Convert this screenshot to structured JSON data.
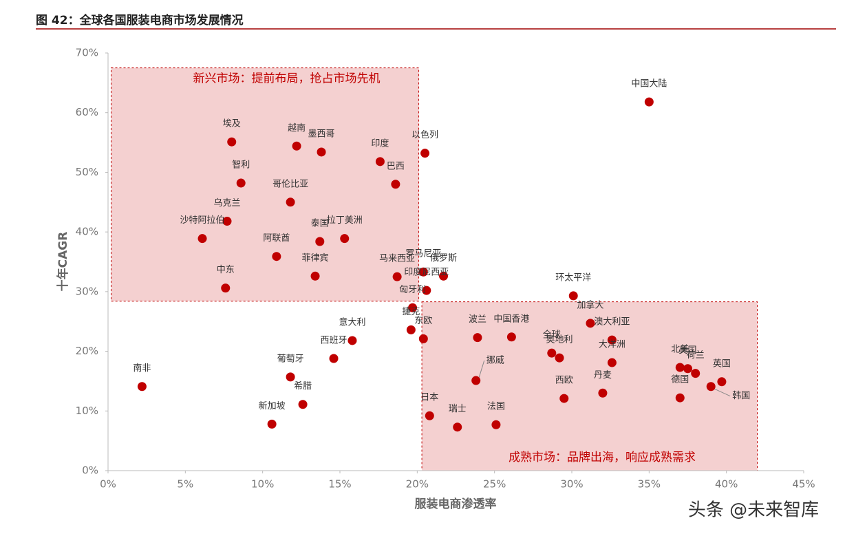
{
  "chart_data": {
    "type": "scatter",
    "title": "图 42：全球各国服装电商市场发展情况",
    "x_label": "服装电商渗透率",
    "y_label": "十年CAGR",
    "watermark": "头条 @未来智库",
    "color": "#c00000",
    "point_labels": [
      "南非",
      "中国大陆",
      "埃及",
      "越南",
      "墨西哥",
      "印度",
      "以色列",
      "巴西",
      "智利",
      "哥伦比亚",
      "乌克兰",
      "沙特阿拉伯",
      "泰国",
      "拉丁美洲",
      "阿联酋",
      "菲律宾",
      "中东",
      "马来西亚",
      "罗马尼亚",
      "俄罗斯",
      "印度尼西亚",
      "匈牙利",
      "捷克",
      "东欧",
      "意大利",
      "西班牙",
      "葡萄牙",
      "希腊",
      "新加坡",
      "波兰",
      "中国香港",
      "挪威",
      "日本",
      "瑞士",
      "法国",
      "环太平洋",
      "加拿大",
      "澳大利亚",
      "大洋洲",
      "全球",
      "奥地利",
      "西欧",
      "丹麦",
      "北美",
      "美国",
      "荷兰",
      "德国",
      "英国",
      "韩国"
    ],
    "x": [
      2.2,
      35.0,
      8.0,
      12.2,
      13.8,
      17.6,
      20.5,
      18.6,
      8.6,
      11.8,
      7.7,
      6.1,
      13.7,
      15.3,
      10.9,
      13.4,
      7.6,
      18.7,
      20.4,
      21.7,
      20.6,
      19.7,
      19.6,
      20.4,
      15.8,
      14.6,
      11.8,
      12.6,
      10.6,
      23.9,
      26.1,
      23.8,
      20.8,
      22.6,
      25.1,
      30.1,
      31.2,
      32.6,
      32.6,
      28.7,
      29.2,
      29.5,
      32.0,
      37.0,
      37.5,
      38.0,
      37.0,
      39.7,
      39.0
    ],
    "values": [
      14.1,
      61.8,
      55.1,
      54.4,
      53.4,
      51.8,
      53.2,
      48.0,
      48.2,
      45.0,
      41.8,
      38.9,
      38.4,
      38.9,
      35.9,
      32.6,
      30.6,
      32.5,
      33.3,
      32.6,
      30.2,
      27.3,
      23.6,
      22.1,
      21.8,
      18.8,
      15.7,
      11.1,
      7.8,
      22.3,
      22.4,
      15.1,
      9.2,
      7.3,
      7.7,
      29.3,
      24.7,
      21.9,
      18.1,
      19.7,
      18.9,
      12.1,
      13.0,
      17.3,
      17.1,
      16.3,
      12.2,
      14.9,
      14.1
    ],
    "xlim": [
      0,
      45
    ],
    "ylim": [
      0,
      70
    ],
    "xticks": [
      {
        "value": 0,
        "label": "0%"
      },
      {
        "value": 5,
        "label": "5%"
      },
      {
        "value": 10,
        "label": "10%"
      },
      {
        "value": 15,
        "label": "15%"
      },
      {
        "value": 20,
        "label": "20%"
      },
      {
        "value": 25,
        "label": "25%"
      },
      {
        "value": 30,
        "label": "30%"
      },
      {
        "value": 35,
        "label": "35%"
      },
      {
        "value": 40,
        "label": "40%"
      },
      {
        "value": 45,
        "label": "45%"
      }
    ],
    "yticks": [
      {
        "value": 0,
        "label": "0%"
      },
      {
        "value": 10,
        "label": "10%"
      },
      {
        "value": 20,
        "label": "20%"
      },
      {
        "value": 30,
        "label": "30%"
      },
      {
        "value": 40,
        "label": "40%"
      },
      {
        "value": 50,
        "label": "50%"
      },
      {
        "value": 60,
        "label": "60%"
      },
      {
        "value": 70,
        "label": "70%"
      }
    ],
    "regions": [
      {
        "label": "新兴市场：提前布局，抢占市场先机",
        "xlim": [
          0.2,
          20.1
        ],
        "ylim": [
          28.4,
          67.5
        ]
      },
      {
        "label": "成熟市场：品牌出海，响应成熟需求",
        "xlim": [
          20.3,
          42
        ],
        "ylim": [
          0,
          28.3
        ]
      }
    ]
  }
}
